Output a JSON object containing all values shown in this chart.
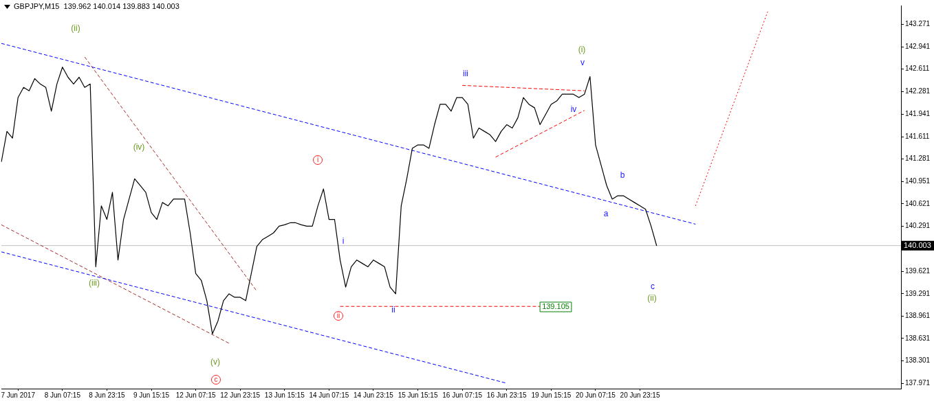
{
  "chart_data": {
    "type": "line",
    "title": "GBPJPY,M15  139.962 140.014 139.883 140.003",
    "categories": [
      null,
      null,
      null,
      "7 Jun 2017",
      null,
      null,
      null,
      null,
      null,
      null,
      null,
      "8 Jun 07:15",
      null,
      null,
      null,
      null,
      null,
      null,
      null,
      "8 Jun 23:15",
      null,
      null,
      null,
      null,
      null,
      null,
      null,
      "9 Jun 15:15",
      null,
      null,
      null,
      null,
      null,
      null,
      null,
      "12 Jun 07:15",
      null,
      null,
      null,
      null,
      null,
      null,
      null,
      "12 Jun 23:15",
      null,
      null,
      null,
      null,
      null,
      null,
      null,
      "13 Jun 15:15",
      null,
      null,
      null,
      null,
      null,
      null,
      null,
      "14 Jun 07:15",
      null,
      null,
      null,
      null,
      null,
      null,
      null,
      "14 Jun 23:15",
      null,
      null,
      null,
      null,
      null,
      null,
      null,
      "15 Jun 15:15",
      null,
      null,
      null,
      null,
      null,
      null,
      null,
      "16 Jun 07:15",
      null,
      null,
      null,
      null,
      null,
      null,
      null,
      "16 Jun 23:15",
      null,
      null,
      null,
      null,
      null,
      null,
      null,
      "19 Jun 15:15",
      null,
      null,
      null,
      null,
      null,
      null,
      null,
      "20 Jun 07:15",
      null,
      null,
      null,
      null,
      null,
      null,
      null,
      "20 Jun 23:15",
      null,
      null,
      null,
      null,
      null,
      null,
      null,
      null,
      null,
      null,
      null,
      null,
      null,
      null,
      null,
      null,
      null,
      null,
      null,
      null,
      null,
      null,
      null,
      null,
      null,
      null,
      null,
      null,
      null,
      null,
      null,
      null,
      null,
      null,
      null,
      null,
      null,
      null,
      null,
      null,
      null,
      null,
      null,
      null,
      null,
      null,
      null
    ],
    "series": [
      {
        "type": "line",
        "color": "#000000",
        "line_style": "solid",
        "values": [
          141.24,
          141.69,
          141.59,
          142.19,
          142.34,
          142.29,
          142.47,
          142.39,
          142.34,
          141.99,
          142.39,
          142.64,
          142.49,
          142.39,
          142.49,
          142.34,
          142.39,
          139.69,
          140.59,
          140.39,
          140.79,
          139.79,
          140.39,
          140.69,
          140.99,
          140.89,
          140.79,
          140.49,
          140.39,
          140.64,
          140.59,
          140.69,
          140.69,
          140.69,
          140.19,
          139.59,
          139.49,
          139.19,
          138.7,
          138.89,
          139.19,
          139.29,
          139.24,
          139.24,
          139.19,
          139.59,
          139.99,
          140.09,
          140.14,
          140.19,
          140.29,
          140.31,
          140.34,
          140.34,
          140.31,
          140.29,
          140.29,
          140.59,
          140.84,
          140.39,
          140.39,
          139.79,
          139.39,
          139.69,
          139.79,
          139.74,
          139.69,
          139.79,
          139.74,
          139.69,
          139.39,
          139.29,
          140.59,
          140.99,
          141.44,
          141.49,
          141.49,
          141.44,
          141.79,
          142.09,
          142.09,
          141.99,
          142.19,
          142.19,
          142.09,
          141.59,
          141.74,
          141.69,
          141.64,
          141.54,
          141.69,
          141.79,
          141.74,
          141.89,
          142.19,
          142.09,
          142.04,
          141.79,
          141.94,
          142.09,
          142.14,
          142.24,
          142.24,
          142.24,
          142.19,
          142.24,
          142.5,
          141.49,
          141.19,
          140.89,
          140.69,
          140.74,
          140.74,
          140.69,
          140.64,
          140.59,
          140.54,
          140.29,
          140.0,
          null,
          null,
          null,
          null,
          null,
          null,
          null,
          null,
          null,
          null,
          null,
          null,
          null,
          null,
          null,
          null,
          null,
          null,
          null,
          null,
          null,
          null,
          null,
          null,
          null,
          null,
          null,
          null,
          null,
          null,
          null,
          null,
          null,
          null,
          null,
          null,
          null,
          null,
          null,
          null,
          null,
          null,
          null,
          null
        ]
      },
      {
        "type": "line",
        "color": "#0000ff",
        "line_style": "dashed",
        "values": [
          142.99,
          null,
          null,
          null,
          null,
          null,
          null,
          null,
          null,
          null,
          null,
          null,
          null,
          null,
          null,
          null,
          null,
          null,
          null,
          null,
          null,
          null,
          null,
          null,
          null,
          null,
          null,
          null,
          null,
          null,
          null,
          null,
          null,
          null,
          null,
          null,
          null,
          null,
          null,
          null,
          null,
          null,
          null,
          null,
          null,
          null,
          null,
          null,
          null,
          null,
          null,
          null,
          null,
          null,
          null,
          null,
          null,
          null,
          null,
          null,
          null,
          null,
          null,
          null,
          null,
          null,
          null,
          null,
          null,
          null,
          null,
          null,
          null,
          null,
          null,
          null,
          null,
          null,
          null,
          null,
          null,
          null,
          null,
          null,
          null,
          null,
          null,
          null,
          null,
          null,
          null,
          null,
          null,
          null,
          null,
          null,
          null,
          null,
          null,
          null,
          null,
          null,
          null,
          null,
          null,
          null,
          null,
          null,
          null,
          null,
          null,
          null,
          null,
          null,
          null,
          null,
          null,
          null,
          null,
          null,
          null,
          null,
          null,
          null,
          null,
          140.32,
          null,
          null,
          null,
          null,
          null,
          null,
          null,
          null,
          null,
          null,
          null,
          null,
          null,
          null,
          null,
          null,
          null,
          null,
          null,
          null,
          null,
          null,
          null,
          null,
          null,
          null,
          null,
          null,
          null,
          null,
          null,
          null,
          null,
          null,
          null,
          null,
          null
        ]
      },
      {
        "type": "line",
        "color": "#0000ff",
        "line_style": "dashed",
        "values": [
          139.91,
          null,
          null,
          null,
          null,
          null,
          null,
          null,
          null,
          null,
          null,
          null,
          null,
          null,
          null,
          null,
          null,
          null,
          null,
          null,
          null,
          null,
          null,
          null,
          null,
          null,
          null,
          null,
          null,
          null,
          null,
          null,
          null,
          null,
          null,
          null,
          null,
          null,
          null,
          null,
          null,
          null,
          null,
          null,
          null,
          null,
          null,
          null,
          null,
          null,
          null,
          null,
          null,
          null,
          null,
          null,
          null,
          null,
          null,
          null,
          null,
          null,
          null,
          null,
          null,
          null,
          null,
          null,
          null,
          null,
          null,
          null,
          null,
          null,
          null,
          null,
          null,
          null,
          null,
          null,
          null,
          null,
          null,
          null,
          null,
          null,
          null,
          null,
          null,
          null,
          null,
          137.97,
          null,
          null,
          null,
          null,
          null,
          null,
          null,
          null,
          null,
          null,
          null,
          null,
          null,
          null,
          null,
          null,
          null,
          null,
          null,
          null,
          null,
          null,
          null,
          null,
          null,
          null,
          null,
          null,
          null,
          null,
          null,
          null,
          null,
          null,
          null,
          null,
          null,
          null,
          null,
          null,
          null,
          null,
          null,
          null,
          null,
          null,
          null,
          null,
          null,
          null,
          null,
          null,
          null,
          null,
          null,
          null,
          null,
          null,
          null,
          null,
          null,
          null,
          null,
          null,
          null,
          null,
          null,
          null,
          null,
          null,
          null
        ]
      },
      {
        "type": "line",
        "color": "#a52a2a",
        "line_style": "dashed",
        "values": [
          null,
          null,
          null,
          null,
          null,
          null,
          null,
          null,
          null,
          null,
          null,
          null,
          null,
          null,
          null,
          142.79,
          null,
          null,
          null,
          null,
          null,
          null,
          null,
          null,
          null,
          null,
          null,
          null,
          null,
          null,
          null,
          null,
          null,
          null,
          null,
          null,
          null,
          null,
          null,
          null,
          null,
          null,
          null,
          null,
          null,
          null,
          139.33,
          null,
          null,
          null,
          null,
          null,
          null,
          null,
          null,
          null,
          null,
          null,
          null,
          null,
          null,
          null,
          null,
          null,
          null,
          null,
          null,
          null,
          null,
          null,
          null,
          null,
          null,
          null,
          null,
          null,
          null,
          null,
          null,
          null,
          null,
          null,
          null,
          null,
          null,
          null,
          null,
          null,
          null,
          null,
          null,
          null,
          null,
          null,
          null,
          null,
          null,
          null,
          null,
          null,
          null,
          null,
          null,
          null,
          null,
          null,
          null,
          null,
          null,
          null,
          null,
          null,
          null,
          null,
          null,
          null,
          null,
          null,
          null,
          null,
          null,
          null,
          null,
          null,
          null,
          null,
          null,
          null,
          null,
          null,
          null,
          null,
          null,
          null,
          null,
          null,
          null,
          null,
          null,
          null,
          null,
          null,
          null,
          null,
          null,
          null,
          null,
          null,
          null,
          null,
          null,
          null,
          null,
          null,
          null,
          null,
          null,
          null,
          null,
          null,
          null,
          null,
          null
        ]
      },
      {
        "type": "line",
        "color": "#a52a2a",
        "line_style": "dashed",
        "values": [
          140.31,
          null,
          null,
          null,
          null,
          null,
          null,
          null,
          null,
          null,
          null,
          null,
          null,
          null,
          null,
          null,
          null,
          null,
          null,
          null,
          null,
          null,
          null,
          null,
          null,
          null,
          null,
          null,
          null,
          null,
          null,
          null,
          null,
          null,
          null,
          null,
          null,
          null,
          null,
          null,
          null,
          138.56,
          null,
          null,
          null,
          null,
          null,
          null,
          null,
          null,
          null,
          null,
          null,
          null,
          null,
          null,
          null,
          null,
          null,
          null,
          null,
          null,
          null,
          null,
          null,
          null,
          null,
          null,
          null,
          null,
          null,
          null,
          null,
          null,
          null,
          null,
          null,
          null,
          null,
          null,
          null,
          null,
          null,
          null,
          null,
          null,
          null,
          null,
          null,
          null,
          null,
          null,
          null,
          null,
          null,
          null,
          null,
          null,
          null,
          null,
          null,
          null,
          null,
          null,
          null,
          null,
          null,
          null,
          null,
          null,
          null,
          null,
          null,
          null,
          null,
          null,
          null,
          null,
          null,
          null,
          null,
          null,
          null,
          null,
          null,
          null,
          null,
          null,
          null,
          null,
          null,
          null,
          null,
          null,
          null,
          null,
          null,
          null,
          null,
          null,
          null,
          null,
          null,
          null,
          null,
          null,
          null,
          null,
          null,
          null,
          null,
          null,
          null,
          null,
          null,
          null,
          null,
          null,
          null,
          null,
          null,
          null,
          null
        ]
      },
      {
        "type": "line",
        "color": "#ff0000",
        "line_style": "dashed",
        "values": [
          null,
          null,
          null,
          null,
          null,
          null,
          null,
          null,
          null,
          null,
          null,
          null,
          null,
          null,
          null,
          null,
          null,
          null,
          null,
          null,
          null,
          null,
          null,
          null,
          null,
          null,
          null,
          null,
          null,
          null,
          null,
          null,
          null,
          null,
          null,
          null,
          null,
          null,
          null,
          null,
          null,
          null,
          null,
          null,
          null,
          null,
          null,
          null,
          null,
          null,
          null,
          null,
          null,
          null,
          null,
          null,
          null,
          null,
          null,
          null,
          null,
          null,
          null,
          null,
          null,
          null,
          null,
          null,
          null,
          null,
          null,
          null,
          null,
          null,
          null,
          null,
          null,
          null,
          null,
          null,
          null,
          null,
          null,
          142.37,
          null,
          null,
          null,
          null,
          null,
          null,
          null,
          null,
          null,
          null,
          null,
          null,
          null,
          null,
          null,
          null,
          null,
          null,
          null,
          null,
          null,
          142.29,
          null,
          null,
          null,
          null,
          null,
          null,
          null,
          null,
          null,
          null,
          null,
          null,
          null,
          null,
          null,
          null,
          null,
          null,
          null,
          null,
          null,
          null,
          null,
          null,
          null,
          null,
          null,
          null,
          null,
          null,
          null,
          null,
          null,
          null,
          null,
          null,
          null,
          null,
          null,
          null,
          null,
          null,
          null,
          null,
          null,
          null,
          null,
          null,
          null,
          null,
          null,
          null,
          null,
          null,
          null,
          null,
          null
        ]
      },
      {
        "type": "line",
        "color": "#ff0000",
        "line_style": "dashed",
        "values": [
          null,
          null,
          null,
          null,
          null,
          null,
          null,
          null,
          null,
          null,
          null,
          null,
          null,
          null,
          null,
          null,
          null,
          null,
          null,
          null,
          null,
          null,
          null,
          null,
          null,
          null,
          null,
          null,
          null,
          null,
          null,
          null,
          null,
          null,
          null,
          null,
          null,
          null,
          null,
          null,
          null,
          null,
          null,
          null,
          null,
          null,
          null,
          null,
          null,
          null,
          null,
          null,
          null,
          null,
          null,
          null,
          null,
          null,
          null,
          null,
          null,
          null,
          null,
          null,
          null,
          null,
          null,
          null,
          null,
          null,
          null,
          null,
          null,
          null,
          null,
          null,
          null,
          null,
          null,
          null,
          null,
          null,
          null,
          null,
          null,
          null,
          null,
          null,
          null,
          141.31,
          null,
          null,
          null,
          null,
          null,
          null,
          null,
          null,
          null,
          null,
          null,
          null,
          null,
          null,
          null,
          142.0,
          null,
          null,
          null,
          null,
          null,
          null,
          null,
          null,
          null,
          null,
          null,
          null,
          null,
          null,
          null,
          null,
          null,
          null,
          null,
          null,
          null,
          null,
          null,
          null,
          null,
          null,
          null,
          null,
          null,
          null,
          null,
          null,
          null,
          null,
          null,
          null,
          null,
          null,
          null,
          null,
          null,
          null,
          null,
          null,
          null,
          null,
          null,
          null,
          null,
          null,
          null,
          null,
          null,
          null,
          null,
          null,
          null
        ]
      },
      {
        "type": "line",
        "color": "#ff0000",
        "line_style": "dashed",
        "values": [
          null,
          null,
          null,
          null,
          null,
          null,
          null,
          null,
          null,
          null,
          null,
          null,
          null,
          null,
          null,
          null,
          null,
          null,
          null,
          null,
          null,
          null,
          null,
          null,
          null,
          null,
          null,
          null,
          null,
          null,
          null,
          null,
          null,
          null,
          null,
          null,
          null,
          null,
          null,
          null,
          null,
          null,
          null,
          null,
          null,
          null,
          null,
          null,
          null,
          null,
          null,
          null,
          null,
          null,
          null,
          null,
          null,
          null,
          null,
          null,
          null,
          139.105,
          null,
          null,
          null,
          null,
          null,
          null,
          null,
          null,
          null,
          null,
          null,
          null,
          null,
          null,
          null,
          null,
          null,
          null,
          null,
          null,
          null,
          null,
          null,
          null,
          null,
          null,
          null,
          null,
          null,
          null,
          null,
          null,
          null,
          null,
          null,
          139.105,
          null,
          null,
          null,
          null,
          null,
          null,
          null,
          null,
          null,
          null,
          null,
          null,
          null,
          null,
          null,
          null,
          null,
          null,
          null,
          null,
          null,
          null,
          null,
          null,
          null,
          null,
          null,
          null,
          null,
          null,
          null,
          null,
          null,
          null,
          null,
          null,
          null,
          null,
          null,
          null,
          null,
          null,
          null,
          null,
          null,
          null,
          null,
          null,
          null,
          null,
          null,
          null,
          null,
          null,
          null,
          null,
          null,
          null,
          null,
          null,
          null,
          null,
          null,
          null,
          null
        ]
      },
      {
        "type": "line",
        "color": "#ff0000",
        "line_style": "dotted",
        "values": [
          null,
          null,
          null,
          null,
          null,
          null,
          null,
          null,
          null,
          null,
          null,
          null,
          null,
          null,
          null,
          null,
          null,
          null,
          null,
          null,
          null,
          null,
          null,
          null,
          null,
          null,
          null,
          null,
          null,
          null,
          null,
          null,
          null,
          null,
          null,
          null,
          null,
          null,
          null,
          null,
          null,
          null,
          null,
          null,
          null,
          null,
          null,
          null,
          null,
          null,
          null,
          null,
          null,
          null,
          null,
          null,
          null,
          null,
          null,
          null,
          null,
          null,
          null,
          null,
          null,
          null,
          null,
          null,
          null,
          null,
          null,
          null,
          null,
          null,
          null,
          null,
          null,
          null,
          null,
          null,
          null,
          null,
          null,
          null,
          null,
          null,
          null,
          null,
          null,
          null,
          null,
          null,
          null,
          null,
          null,
          null,
          null,
          null,
          null,
          null,
          null,
          null,
          null,
          null,
          null,
          null,
          null,
          null,
          null,
          null,
          null,
          null,
          null,
          null,
          null,
          null,
          null,
          null,
          null,
          null,
          null,
          null,
          null,
          null,
          null,
          140.59,
          null,
          null,
          null,
          null,
          null,
          null,
          null,
          null,
          null,
          null,
          null,
          null,
          143.46,
          null,
          null,
          null,
          null,
          null,
          null,
          null,
          null,
          null,
          null,
          null,
          null,
          null,
          null,
          null,
          null,
          null,
          null,
          null,
          null,
          null,
          null,
          null,
          null
        ]
      }
    ],
    "ylim": [
      137.89,
      143.55
    ],
    "yticks": [
      137.971,
      138.301,
      138.631,
      138.961,
      139.291,
      139.621,
      140.291,
      140.621,
      140.951,
      141.281,
      141.611,
      141.941,
      142.281,
      142.611,
      142.941,
      143.271
    ],
    "ref_lines": [
      {
        "axis": "y",
        "value": 140.003,
        "label": "140.003",
        "color": "#c0c0c0"
      }
    ],
    "marker": "none",
    "annotations": [
      "(ii)",
      "(iii)",
      "(iv)",
      "(v)",
      "c",
      "i",
      "ii",
      "i",
      "ii",
      "iii",
      "iv",
      "v",
      "(i)",
      "a",
      "b",
      "c",
      "(ii)",
      "139.105"
    ]
  }
}
